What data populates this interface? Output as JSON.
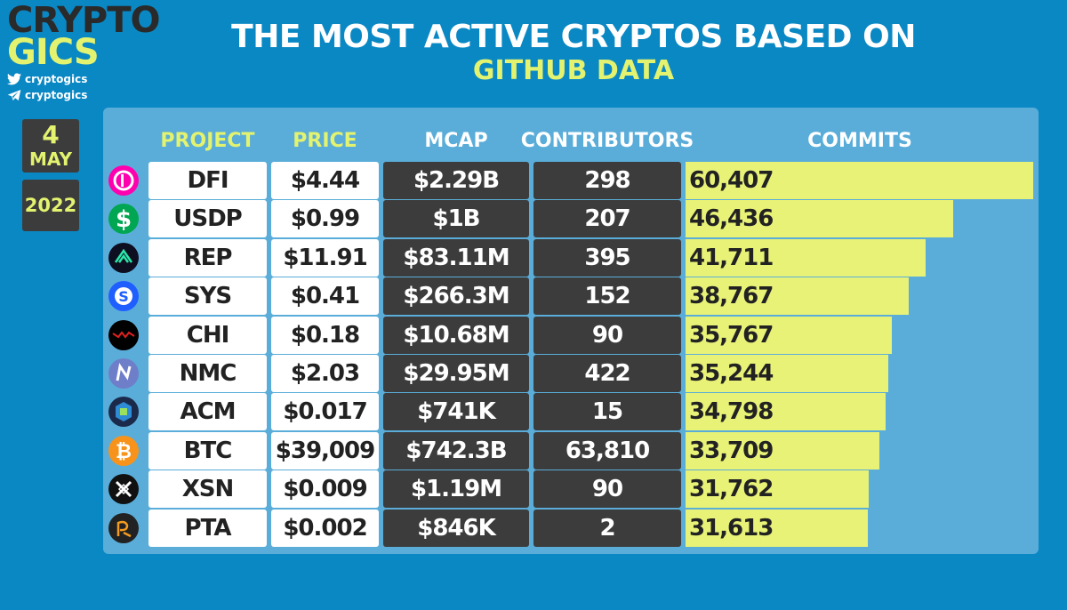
{
  "brand": {
    "line1": "CRYPTO",
    "line2": "GICS",
    "twitter": "cryptogics",
    "telegram": "cryptogics"
  },
  "date": {
    "day": "4",
    "month": "MAY",
    "year": "2022"
  },
  "title": {
    "line1": "THE MOST ACTIVE CRYPTOS BASED ON",
    "line2": "GITHUB DATA"
  },
  "headers": {
    "project": "PROJECT",
    "price": "PRICE",
    "mcap": "MCAP",
    "contributors": "CONTRIBUTORS",
    "commits": "COMMITS"
  },
  "colors": {
    "background": "#0a88c4",
    "panel": "#5aadd9",
    "accent": "#e3f36f",
    "bar": "#e8f277",
    "dark_cell": "#3c3c3c"
  },
  "chart_data": {
    "type": "bar",
    "categories": [
      "DFI",
      "USDP",
      "REP",
      "SYS",
      "CHI",
      "NMC",
      "ACM",
      "BTC",
      "XSN",
      "PTA"
    ],
    "values": [
      60407,
      46436,
      41711,
      38767,
      35767,
      35244,
      34798,
      33709,
      31762,
      31613
    ],
    "value_labels": [
      "60,407",
      "46,436",
      "41,711",
      "38,767",
      "35,767",
      "35,244",
      "34,798",
      "33,709",
      "31,762",
      "31,613"
    ],
    "xlim": [
      0,
      60407
    ],
    "ylabel": "COMMITS"
  },
  "rows": [
    {
      "project": "DFI",
      "price": "$4.44",
      "mcap": "$2.29B",
      "contributors": "298",
      "commits": "60,407",
      "icon": "defichain-icon"
    },
    {
      "project": "USDP",
      "price": "$0.99",
      "mcap": "$1B",
      "contributors": "207",
      "commits": "46,436",
      "icon": "usdp-icon"
    },
    {
      "project": "REP",
      "price": "$11.91",
      "mcap": "$83.11M",
      "contributors": "395",
      "commits": "41,711",
      "icon": "augur-icon"
    },
    {
      "project": "SYS",
      "price": "$0.41",
      "mcap": "$266.3M",
      "contributors": "152",
      "commits": "38,767",
      "icon": "syscoin-icon"
    },
    {
      "project": "CHI",
      "price": "$0.18",
      "mcap": "$10.68M",
      "contributors": "90",
      "commits": "35,767",
      "icon": "xaya-icon"
    },
    {
      "project": "NMC",
      "price": "$2.03",
      "mcap": "$29.95M",
      "contributors": "422",
      "commits": "35,244",
      "icon": "namecoin-icon"
    },
    {
      "project": "ACM",
      "price": "$0.017",
      "mcap": "$741K",
      "contributors": "15",
      "commits": "34,798",
      "icon": "actinium-icon"
    },
    {
      "project": "BTC",
      "price": "$39,009",
      "mcap": "$742.3B",
      "contributors": "63,810",
      "commits": "33,709",
      "icon": "bitcoin-icon"
    },
    {
      "project": "XSN",
      "price": "$0.009",
      "mcap": "$1.19M",
      "contributors": "90",
      "commits": "31,762",
      "icon": "stakenet-icon"
    },
    {
      "project": "PTA",
      "price": "$0.002",
      "mcap": "$846K",
      "contributors": "2",
      "commits": "31,613",
      "icon": "petrachor-icon"
    }
  ]
}
